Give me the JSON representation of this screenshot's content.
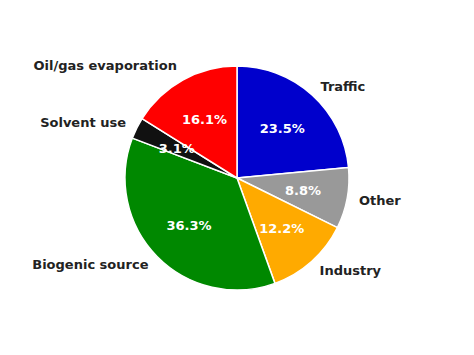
{
  "chart_data": {
    "type": "pie",
    "categories": [
      "Traffic",
      "Other",
      "Industry",
      "Biogenic source",
      "Solvent use",
      "Oil/gas evaporation"
    ],
    "values": [
      23.5,
      8.8,
      12.2,
      36.3,
      3.1,
      16.1
    ],
    "value_labels": [
      "23.5%",
      "8.8%",
      "12.2%",
      "36.3%",
      "3.1%",
      "16.1%"
    ],
    "colors": [
      "#0000cc",
      "#999999",
      "#ffaa00",
      "#008800",
      "#111111",
      "#ff0000"
    ],
    "data_labels": true
  }
}
